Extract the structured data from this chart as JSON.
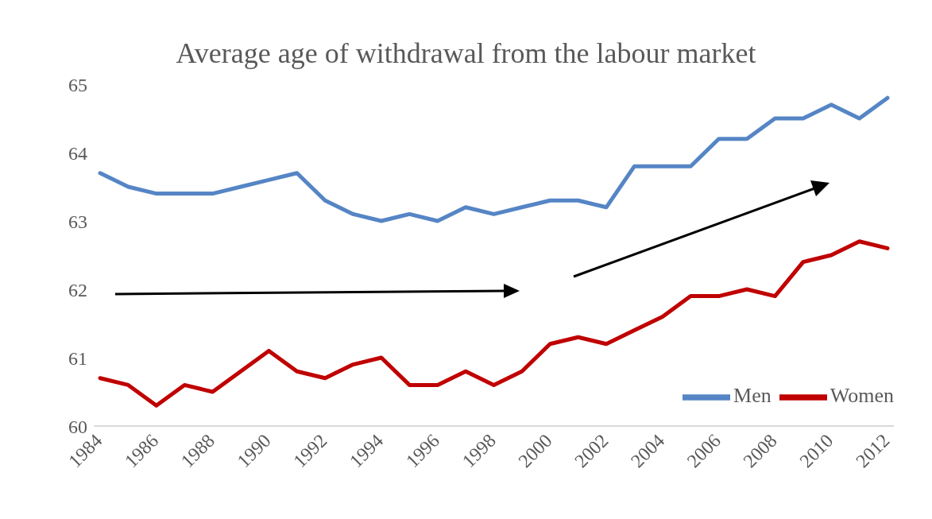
{
  "chart_data": {
    "type": "line",
    "title": "Average age of withdrawal from the labour market",
    "categories": [
      "1984",
      null,
      "1986",
      null,
      "1988",
      null,
      "1990",
      null,
      "1992",
      null,
      "1994",
      null,
      "1996",
      null,
      "1998",
      null,
      "2000",
      null,
      "2002",
      null,
      "2004",
      null,
      "2006",
      null,
      "2008",
      null,
      "2010",
      null,
      "2012"
    ],
    "series": [
      {
        "name": "Men",
        "color": "#5585c5",
        "values": [
          63.7,
          63.5,
          63.4,
          63.4,
          63.4,
          63.5,
          63.6,
          63.7,
          63.3,
          63.1,
          63.0,
          63.1,
          63.0,
          63.2,
          63.1,
          63.2,
          63.3,
          63.3,
          63.2,
          63.8,
          63.8,
          63.8,
          64.2,
          64.2,
          64.5,
          64.5,
          64.7,
          64.5,
          64.8
        ]
      },
      {
        "name": "Women",
        "color": "#c00000",
        "values": [
          60.7,
          60.6,
          60.3,
          60.6,
          60.5,
          60.8,
          61.1,
          60.8,
          60.7,
          60.9,
          61.0,
          60.6,
          60.6,
          60.8,
          60.6,
          60.8,
          61.2,
          61.3,
          61.2,
          61.4,
          61.6,
          61.9,
          61.9,
          62.0,
          61.9,
          62.4,
          62.5,
          62.7,
          62.6
        ]
      }
    ],
    "ylim": [
      60,
      65
    ],
    "yticks": [
      60,
      61,
      62,
      63,
      64,
      65
    ],
    "grid": false,
    "legend": "bottom right",
    "marker": "none",
    "line_style": "solid"
  }
}
